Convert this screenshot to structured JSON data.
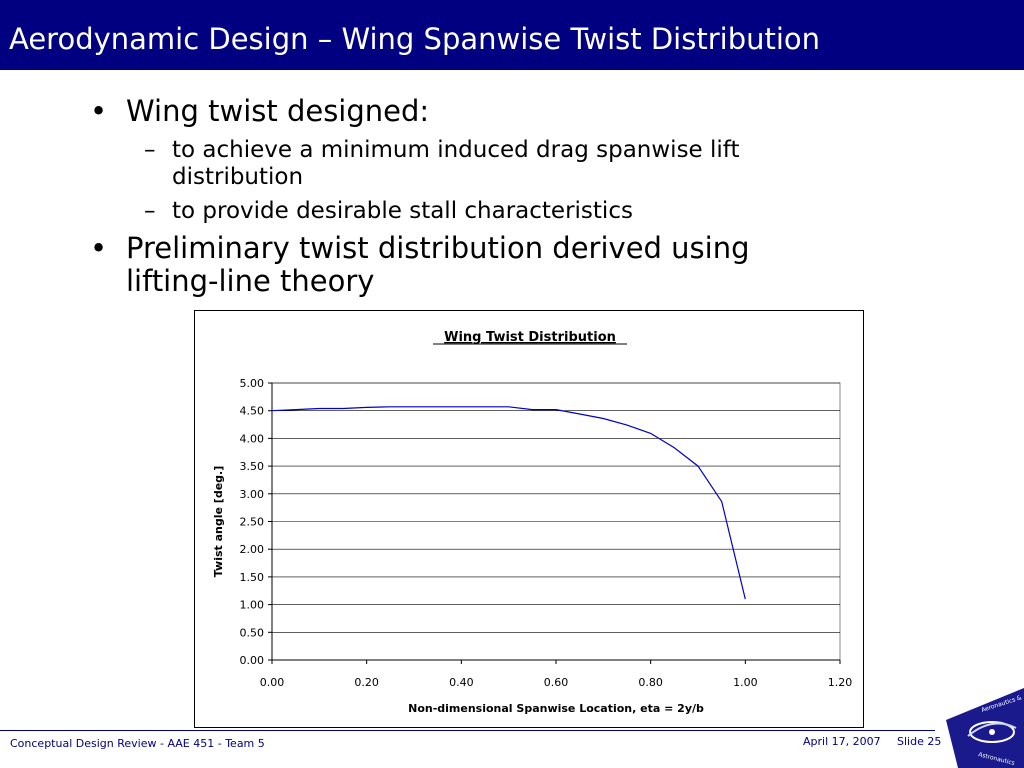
{
  "slide": {
    "title": "Aerodynamic Design – Wing Spanwise Twist Distribution",
    "bullets": [
      {
        "text": "Wing twist designed:",
        "sub": [
          {
            "line1": "to achieve a minimum induced drag spanwise lift",
            "line2": "distribution"
          },
          {
            "line1": "to provide desirable stall characteristics",
            "line2": ""
          }
        ]
      },
      {
        "line1": "Preliminary twist distribution derived using",
        "line2": "lifting-line theory"
      }
    ],
    "bullet_glyph": "•",
    "dash_glyph": "–"
  },
  "chart_data": {
    "type": "line",
    "title": "Wing Twist Distribution",
    "xlabel": "Non-dimensional Spanwise Location, eta = 2y/b",
    "ylabel": "Twist angle [deg.]",
    "xlim": [
      0,
      1.2
    ],
    "ylim": [
      0,
      5
    ],
    "x_ticks": [
      "0.00",
      "0.20",
      "0.40",
      "0.60",
      "0.80",
      "1.00",
      "1.20"
    ],
    "y_ticks": [
      "0.00",
      "0.50",
      "1.00",
      "1.50",
      "2.00",
      "2.50",
      "3.00",
      "3.50",
      "4.00",
      "4.50",
      "5.00"
    ],
    "grid": "horizontal",
    "line_color": "#0000cc",
    "series": [
      {
        "x": [
          0.0,
          0.05,
          0.1,
          0.15,
          0.2,
          0.25,
          0.3,
          0.35,
          0.4,
          0.45,
          0.5,
          0.55,
          0.6,
          0.65,
          0.7,
          0.75,
          0.8,
          0.85,
          0.9,
          0.95,
          1.0
        ],
        "y": [
          4.5,
          4.52,
          4.54,
          4.54,
          4.56,
          4.57,
          4.57,
          4.57,
          4.57,
          4.57,
          4.57,
          4.52,
          4.52,
          4.44,
          4.36,
          4.24,
          4.09,
          3.83,
          3.5,
          2.86,
          1.1
        ]
      }
    ]
  },
  "footer": {
    "left": "Conceptual Design Review - AAE 451 - Team 5",
    "date": "April 17, 2007",
    "slide": "Slide 25"
  },
  "logo": {
    "top_text": "Aeronautics &",
    "bottom_text": "Astronautics"
  },
  "colors": {
    "title_bar": "#000080",
    "footer_text": "#000080"
  }
}
